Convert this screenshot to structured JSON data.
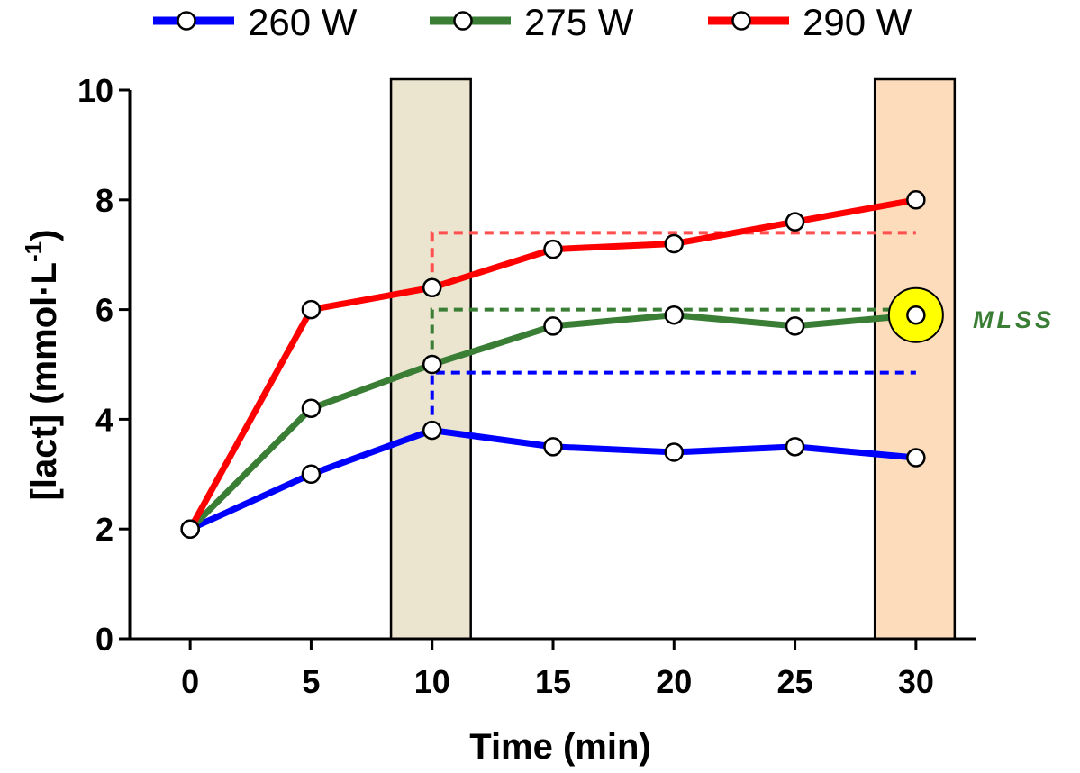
{
  "chart_data": {
    "type": "line",
    "title": "",
    "xlabel": "Time (min)",
    "ylabel_main": "[lact] (mmol·L",
    "ylabel_sup": "-1",
    "ylabel_close": ")",
    "x": [
      0,
      5,
      10,
      15,
      20,
      25,
      30
    ],
    "x_tick_labels": [
      "0",
      "5",
      "10",
      "15",
      "20",
      "25",
      "30"
    ],
    "y_ticks": [
      0,
      2,
      4,
      6,
      8,
      10
    ],
    "y_tick_labels": [
      "0",
      "2",
      "4",
      "6",
      "8",
      "10"
    ],
    "xlim": [
      -2.5,
      32.5
    ],
    "ylim": [
      0,
      10
    ],
    "grid": false,
    "legend_position": "top",
    "series": [
      {
        "name": "260 W",
        "color": "#0000ff",
        "values": [
          2.0,
          3.0,
          3.8,
          3.5,
          3.4,
          3.5,
          3.3
        ]
      },
      {
        "name": "275 W",
        "color": "#3a7d35",
        "values": [
          2.0,
          4.2,
          5.0,
          5.7,
          5.9,
          5.7,
          5.9
        ]
      },
      {
        "name": "290 W",
        "color": "#ff0000",
        "values": [
          2.0,
          6.0,
          6.4,
          7.1,
          7.2,
          7.6,
          8.0
        ]
      }
    ],
    "shaded_regions": [
      {
        "x_from": 8.3,
        "x_to": 11.6,
        "color": "#ebe5cf"
      },
      {
        "x_from": 28.3,
        "x_to": 31.6,
        "color": "#fddcbb"
      }
    ],
    "reference_lines": [
      {
        "series": "260 W",
        "color": "#0000ff",
        "x_from": 10,
        "x_to": 30,
        "y": 4.85,
        "y_start": 3.8
      },
      {
        "series": "275 W",
        "color": "#3a7d35",
        "x_from": 10,
        "x_to": 30,
        "y": 6.0,
        "y_start": 5.0
      },
      {
        "series": "290 W",
        "color": "#ff5050",
        "x_from": 10,
        "x_to": 30,
        "y": 7.4,
        "y_start": 6.4
      }
    ],
    "highlight_point": {
      "x": 30,
      "y": 5.9,
      "color": "#ffff00"
    },
    "annotation": {
      "text": "MLSS",
      "color": "#3a7d35",
      "x": 30,
      "y": 5.9
    }
  }
}
